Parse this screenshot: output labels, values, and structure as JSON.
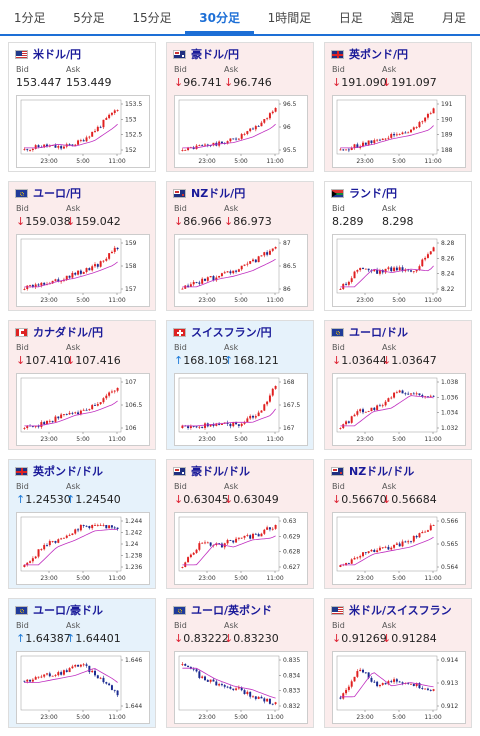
{
  "tabs": [
    {
      "label": "1分足",
      "active": false
    },
    {
      "label": "5分足",
      "active": false
    },
    {
      "label": "15分足",
      "active": false
    },
    {
      "label": "30分足",
      "active": true
    },
    {
      "label": "1時間足",
      "active": false
    },
    {
      "label": "日足",
      "active": false
    },
    {
      "label": "週足",
      "active": false
    },
    {
      "label": "月足",
      "active": false
    }
  ],
  "bid_label": "Bid",
  "ask_label": "Ask",
  "colors": {
    "up": "#1f7bd8",
    "down": "#d23030",
    "candle_up": "#e02020",
    "candle_down": "#1a2a90",
    "ma": "#c030c0"
  },
  "cards": [
    {
      "pair": "米ドル/円",
      "flag": "us",
      "dir": "flat",
      "bid": "153.447",
      "ask": "153.449",
      "chart_data": {
        "type": "candlestick",
        "x_ticks": [
          "23:00",
          "5:00",
          "11:00"
        ],
        "y_ticks": [
          "153.5",
          "153",
          "152.5",
          "152"
        ]
      }
    },
    {
      "pair": "豪ドル/円",
      "flag": "au",
      "dir": "down",
      "bid": "96.741",
      "ask": "96.746",
      "chart_data": {
        "type": "candlestick",
        "x_ticks": [
          "23:00",
          "5:00",
          "11:00"
        ],
        "y_ticks": [
          "96.5",
          "96",
          "95.5"
        ]
      }
    },
    {
      "pair": "英ポンド/円",
      "flag": "gb",
      "dir": "down",
      "bid": "191.090",
      "ask": "191.097",
      "chart_data": {
        "type": "candlestick",
        "x_ticks": [
          "23:00",
          "5:00",
          "11:00"
        ],
        "y_ticks": [
          "191",
          "190",
          "189",
          "188"
        ]
      }
    },
    {
      "pair": "ユーロ/円",
      "flag": "eu",
      "dir": "down",
      "bid": "159.038",
      "ask": "159.042",
      "chart_data": {
        "type": "candlestick",
        "x_ticks": [
          "23:00",
          "5:00",
          "11:00"
        ],
        "y_ticks": [
          "159",
          "158",
          "157"
        ]
      }
    },
    {
      "pair": "NZドル/円",
      "flag": "nz",
      "dir": "down",
      "bid": "86.966",
      "ask": "86.973",
      "chart_data": {
        "type": "candlestick",
        "x_ticks": [
          "23:00",
          "5:00",
          "11:00"
        ],
        "y_ticks": [
          "87",
          "86.5",
          "86"
        ]
      }
    },
    {
      "pair": "ランド/円",
      "flag": "za",
      "dir": "flat",
      "bid": "8.289",
      "ask": "8.298",
      "chart_data": {
        "type": "candlestick",
        "x_ticks": [
          "23:00",
          "5:00",
          "11:00"
        ],
        "y_ticks": [
          "8.28",
          "8.26",
          "8.24",
          "8.22"
        ]
      }
    },
    {
      "pair": "カナダドル/円",
      "flag": "ca",
      "dir": "down",
      "bid": "107.410",
      "ask": "107.416",
      "chart_data": {
        "type": "candlestick",
        "x_ticks": [
          "23:00",
          "5:00",
          "11:00"
        ],
        "y_ticks": [
          "107",
          "106.5",
          "106"
        ]
      }
    },
    {
      "pair": "スイスフラン/円",
      "flag": "ch",
      "dir": "up",
      "bid": "168.105",
      "ask": "168.121",
      "chart_data": {
        "type": "candlestick",
        "x_ticks": [
          "23:00",
          "5:00",
          "11:00"
        ],
        "y_ticks": [
          "168",
          "167.5",
          "167"
        ]
      }
    },
    {
      "pair": "ユーロ/ドル",
      "flag": "eu",
      "dir": "down",
      "bid": "1.03644",
      "ask": "1.03647",
      "chart_data": {
        "type": "candlestick",
        "x_ticks": [
          "23:00",
          "5:00",
          "11:00"
        ],
        "y_ticks": [
          "1.038",
          "1.036",
          "1.034",
          "1.032"
        ]
      }
    },
    {
      "pair": "英ポンド/ドル",
      "flag": "gb",
      "dir": "up",
      "bid": "1.24530",
      "ask": "1.24540",
      "chart_data": {
        "type": "candlestick",
        "x_ticks": [
          "23:00",
          "5:00",
          "11:00"
        ],
        "y_ticks": [
          "1.244",
          "1.242",
          "1.24",
          "1.238",
          "1.236"
        ]
      }
    },
    {
      "pair": "豪ドル/ドル",
      "flag": "au",
      "dir": "down",
      "bid": "0.63045",
      "ask": "0.63049",
      "chart_data": {
        "type": "candlestick",
        "x_ticks": [
          "23:00",
          "5:00",
          "11:00"
        ],
        "y_ticks": [
          "0.63",
          "0.629",
          "0.628",
          "0.627"
        ]
      }
    },
    {
      "pair": "NZドル/ドル",
      "flag": "nz",
      "dir": "down",
      "bid": "0.56670",
      "ask": "0.56684",
      "chart_data": {
        "type": "candlestick",
        "x_ticks": [
          "23:00",
          "5:00",
          "11:00"
        ],
        "y_ticks": [
          "0.566",
          "0.565",
          "0.564"
        ]
      }
    },
    {
      "pair": "ユーロ/豪ドル",
      "flag": "eu",
      "dir": "up",
      "bid": "1.64387",
      "ask": "1.64401",
      "chart_data": {
        "type": "candlestick",
        "x_ticks": [
          "23:00",
          "5:00",
          "11:00"
        ],
        "y_ticks": [
          "1.646",
          "1.644"
        ]
      }
    },
    {
      "pair": "ユーロ/英ポンド",
      "flag": "eu",
      "dir": "down",
      "bid": "0.83222",
      "ask": "0.83230",
      "chart_data": {
        "type": "candlestick",
        "x_ticks": [
          "23:00",
          "5:00",
          "11:00"
        ],
        "y_ticks": [
          "0.835",
          "0.834",
          "0.833",
          "0.832"
        ]
      }
    },
    {
      "pair": "米ドル/スイスフラン",
      "flag": "us",
      "dir": "down",
      "bid": "0.91269",
      "ask": "0.91284",
      "chart_data": {
        "type": "candlestick",
        "x_ticks": [
          "23:00",
          "5:00",
          "11:00"
        ],
        "y_ticks": [
          "0.914",
          "0.913",
          "0.912"
        ]
      }
    }
  ]
}
